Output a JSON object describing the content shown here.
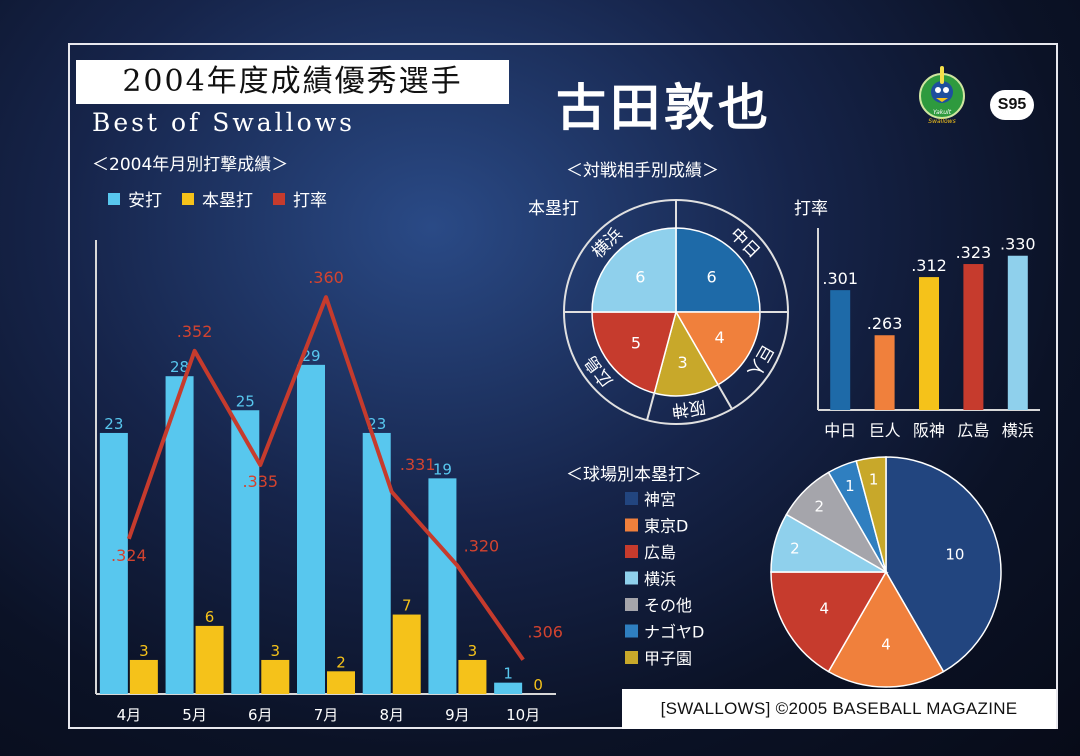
{
  "card": {
    "title": "2004年度成績優秀選手",
    "subtitle": "Best of Swallows",
    "player": "古田敦也",
    "card_number": "S95",
    "copyright": "[SWALLOWS] ©2005 BASEBALL MAGAZINE",
    "logo_text": "Yakult Swallows",
    "colors": {
      "hits": "#58c7ee",
      "hr": "#f5c21a",
      "avg": "#c63b2d",
      "background": "#0b1226"
    }
  },
  "chart_data": [
    {
      "type": "bar",
      "title": "＜2004年月別打撃成績＞",
      "legend": [
        {
          "label": "安打",
          "color": "#58c7ee"
        },
        {
          "label": "本塁打",
          "color": "#f5c21a"
        },
        {
          "label": "打率",
          "color": "#c63b2d"
        }
      ],
      "categories": [
        "4月",
        "5月",
        "6月",
        "7月",
        "8月",
        "9月",
        "10月"
      ],
      "series": [
        {
          "name": "安打",
          "values": [
            23,
            28,
            25,
            29,
            23,
            19,
            1
          ]
        },
        {
          "name": "本塁打",
          "values": [
            3,
            6,
            3,
            2,
            7,
            3,
            0
          ]
        },
        {
          "name": "打率",
          "type": "line",
          "values": [
            0.324,
            0.352,
            0.335,
            0.36,
            0.331,
            0.32,
            0.306
          ],
          "labels": [
            ".324",
            ".352",
            ".335",
            ".360",
            ".331",
            ".320",
            ".306"
          ]
        }
      ],
      "ylim": [
        0,
        40
      ]
    },
    {
      "type": "pie",
      "title": "＜対戦相手別成績＞",
      "ylabel": "本塁打",
      "categories": [
        "中日",
        "巨人",
        "阪神",
        "広島",
        "横浜"
      ],
      "values": [
        6,
        4,
        3,
        5,
        6
      ],
      "colors": [
        "#1e6aa8",
        "#f0803c",
        "#c8a82a",
        "#c63b2d",
        "#8fd0ec"
      ]
    },
    {
      "type": "bar",
      "ylabel": "打率",
      "categories": [
        "中日",
        "巨人",
        "阪神",
        "広島",
        "横浜"
      ],
      "values": [
        0.301,
        0.263,
        0.312,
        0.323,
        0.33
      ],
      "labels": [
        ".301",
        ".263",
        ".312",
        ".323",
        ".330"
      ],
      "colors": [
        "#1e6aa8",
        "#f0803c",
        "#f5c21a",
        "#c63b2d",
        "#8fd0ec"
      ],
      "ylim": [
        0.2,
        0.35
      ]
    },
    {
      "type": "pie",
      "title": "＜球場別本塁打＞",
      "categories": [
        "神宮",
        "東京D",
        "広島",
        "横浜",
        "その他",
        "ナゴヤD",
        "甲子園"
      ],
      "values": [
        10,
        4,
        4,
        2,
        2,
        1,
        1
      ],
      "colors": [
        "#22457f",
        "#f0803c",
        "#c63b2d",
        "#8fd0ec",
        "#a5a5ab",
        "#2f7fc0",
        "#c8a82a"
      ]
    }
  ]
}
